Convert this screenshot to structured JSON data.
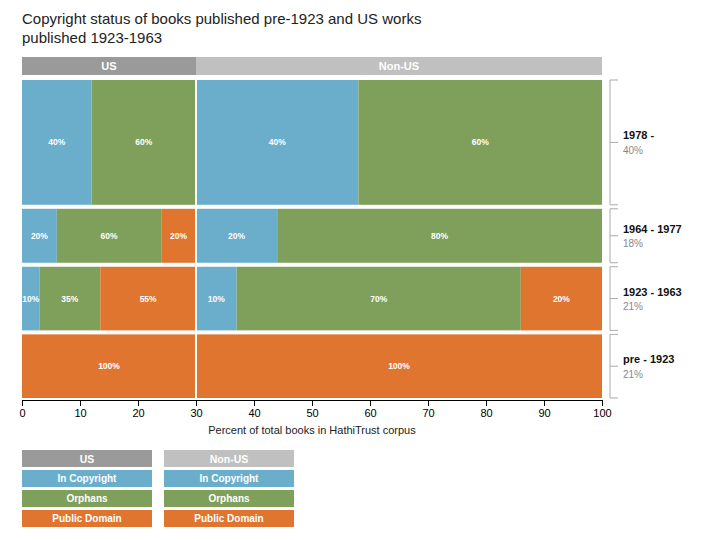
{
  "chart_data": {
    "type": "mosaic",
    "orientation": "horizontal",
    "stacked": true,
    "title": "Copyright status of books published pre-1923 and US works",
    "subtitle": "published 1923-1963",
    "xlabel": "Percent of total books in HathiTrust corpus",
    "xlim": [
      0,
      100
    ],
    "xticks": [
      0,
      10,
      20,
      30,
      40,
      50,
      60,
      70,
      80,
      90,
      100
    ],
    "ylim": [
      0,
      100
    ],
    "tick_labels": "x",
    "grid": false,
    "legend": "bottom-left",
    "categories": [
      "pre - 1923",
      "1923 - 1963",
      "1964 - 1977",
      "1978 -"
    ],
    "category_shares": [
      21,
      21,
      18,
      40
    ],
    "category_share_labels": [
      "21%",
      "21%",
      "18%",
      "40%"
    ],
    "groups": [
      {
        "name": "US",
        "color": "#9a9a9a",
        "share": 30,
        "series": [
          {
            "name": "In Copyright",
            "color": "#6aaecc",
            "values": [
              0,
              10,
              20,
              40
            ],
            "value_labels": [
              null,
              "10%",
              "20%",
              "40%"
            ]
          },
          {
            "name": "Orphans",
            "color": "#7fa05a",
            "values": [
              0,
              35,
              60,
              60
            ],
            "value_labels": [
              null,
              "35%",
              "60%",
              "60%"
            ]
          },
          {
            "name": "Public Domain",
            "color": "#e07530",
            "values": [
              100,
              55,
              20,
              0
            ],
            "value_labels": [
              "100%",
              "55%",
              "20%",
              null
            ]
          }
        ]
      },
      {
        "name": "Non-US",
        "color": "#c0c0c0",
        "share": 70,
        "series": [
          {
            "name": "In Copyright",
            "color": "#6aaecc",
            "values": [
              0,
              10,
              20,
              40
            ],
            "value_labels": [
              null,
              "10%",
              "20%",
              "40%"
            ]
          },
          {
            "name": "Orphans",
            "color": "#7fa05a",
            "values": [
              0,
              70,
              80,
              60
            ],
            "value_labels": [
              null,
              "70%",
              "80%",
              "60%"
            ]
          },
          {
            "name": "Public Domain",
            "color": "#e07530",
            "values": [
              100,
              20,
              0,
              0
            ],
            "value_labels": [
              "100%",
              "20%",
              null,
              null
            ]
          }
        ]
      }
    ]
  }
}
